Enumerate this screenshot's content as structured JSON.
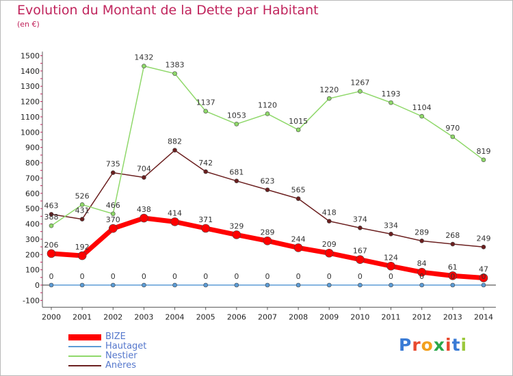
{
  "header": {
    "title": "Evolution du Montant de la Dette par Habitant",
    "unit": "(en €)"
  },
  "logo": {
    "text": "Proxiti",
    "colors": [
      "#3a7bd5",
      "#e8492e",
      "#f2a01e",
      "#2aa84a",
      "#e8492e",
      "#3a7bd5",
      "#9bc83c"
    ]
  },
  "chart_data": {
    "type": "line",
    "title": "Evolution du Montant de la Dette par Habitant",
    "ylabel": "(en €)",
    "xlabel": "",
    "ylim": [
      -100,
      1500
    ],
    "yticks": [
      -100,
      0,
      100,
      200,
      300,
      400,
      500,
      600,
      700,
      800,
      900,
      1000,
      1100,
      1200,
      1300,
      1400,
      1500
    ],
    "categories": [
      "2000",
      "2001",
      "2002",
      "2003",
      "2004",
      "2005",
      "2006",
      "2007",
      "2008",
      "2009",
      "2010",
      "2011",
      "2012",
      "2013",
      "2014"
    ],
    "grid": false,
    "legend": "bottom-left",
    "series": [
      {
        "name": "Anères",
        "color": "#6b1f1f",
        "values": [
          463,
          431,
          735,
          704,
          882,
          742,
          681,
          623,
          565,
          418,
          374,
          334,
          289,
          268,
          249
        ]
      },
      {
        "name": "Nestier",
        "color": "#8fd86a",
        "values": [
          388,
          526,
          466,
          1432,
          1383,
          1137,
          1053,
          1120,
          1015,
          1220,
          1267,
          1193,
          1104,
          970,
          819
        ]
      },
      {
        "name": "Hautaget",
        "color": "#5b9bd5",
        "values": [
          0,
          0,
          0,
          0,
          0,
          0,
          0,
          0,
          0,
          0,
          0,
          0,
          0,
          0,
          0
        ]
      },
      {
        "name": "BIZE",
        "color": "#ff0000",
        "values": [
          206,
          192,
          370,
          438,
          414,
          371,
          329,
          289,
          244,
          209,
          167,
          124,
          84,
          61,
          47
        ]
      }
    ]
  }
}
